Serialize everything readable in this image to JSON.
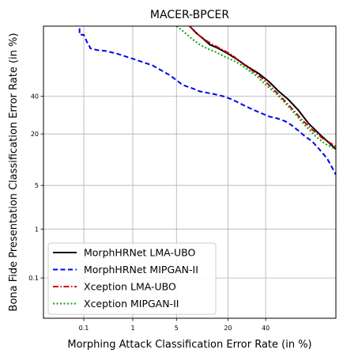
{
  "chart_data": {
    "type": "line",
    "title": "MACER-BPCER",
    "xlabel": "Morphing Attack Classification Error Rate (in %)",
    "ylabel": "Bona Fide Presentation Classification Error Rate (in %)",
    "scale": "probit",
    "xlim": [
      0.01,
      80
    ],
    "ylim": [
      0.01,
      80
    ],
    "xticks": [
      0.1,
      1,
      5,
      20,
      40
    ],
    "xtick_labels": [
      "0.1",
      "1",
      "5",
      "20",
      "40"
    ],
    "yticks": [
      0.1,
      1,
      5,
      20,
      40
    ],
    "ytick_labels": [
      "0.1",
      "1",
      "5",
      "20",
      "40"
    ],
    "grid": true,
    "legend_position": "lower-left",
    "series": [
      {
        "name": "MorphHRNet LMA-UBO",
        "color": "#000000",
        "dash": "solid",
        "x": [
          7.5,
          9,
          11,
          13,
          16,
          20,
          25,
          30,
          36,
          42,
          48,
          54,
          60,
          66,
          72,
          76,
          80
        ],
        "y": [
          80,
          77,
          74,
          71,
          69,
          66,
          62,
          58,
          54,
          49,
          43,
          38,
          32,
          25,
          20,
          17,
          14
        ]
      },
      {
        "name": "MorphHRNet MIPGAN-II",
        "color": "#0000ee",
        "dash": "dashed",
        "x": [
          0.08,
          0.08,
          0.1,
          0.12,
          0.13,
          0.14,
          0.2,
          0.3,
          0.5,
          0.8,
          1,
          1.5,
          2.2,
          3,
          4,
          5,
          6,
          8,
          10,
          14,
          18,
          22,
          27,
          33,
          38,
          42,
          47,
          52,
          56,
          60,
          64,
          68,
          72,
          76,
          80
        ],
        "y": [
          79,
          76,
          76,
          72,
          71,
          69,
          68,
          67.5,
          66,
          64,
          63,
          61,
          59,
          56,
          53,
          50,
          47,
          45,
          43,
          41.5,
          40,
          38,
          35,
          32,
          30,
          28.5,
          27.5,
          26,
          24,
          21.5,
          19,
          17,
          14,
          11,
          7
        ]
      },
      {
        "name": "Xception LMA-UBO",
        "color": "#cc0000",
        "dash": "dashdot",
        "x": [
          7.5,
          9,
          11,
          14,
          18,
          22,
          27,
          32,
          38,
          44,
          50,
          56,
          62,
          68,
          74,
          78,
          80
        ],
        "y": [
          80,
          77,
          74,
          71,
          68,
          65,
          60,
          56,
          51,
          45,
          39,
          33,
          27,
          22,
          18,
          16,
          15
        ]
      },
      {
        "name": "Xception MIPGAN-II",
        "color": "#00aa00",
        "dash": "dotted",
        "x": [
          5,
          6,
          7,
          8,
          10,
          12,
          15,
          19,
          24,
          29,
          35,
          40,
          46,
          52,
          58,
          64,
          70,
          75,
          80
        ],
        "y": [
          80,
          78,
          76,
          74,
          71,
          69,
          67,
          64,
          61,
          57,
          52,
          47,
          42,
          36,
          30,
          24,
          19,
          16,
          14
        ]
      }
    ]
  }
}
